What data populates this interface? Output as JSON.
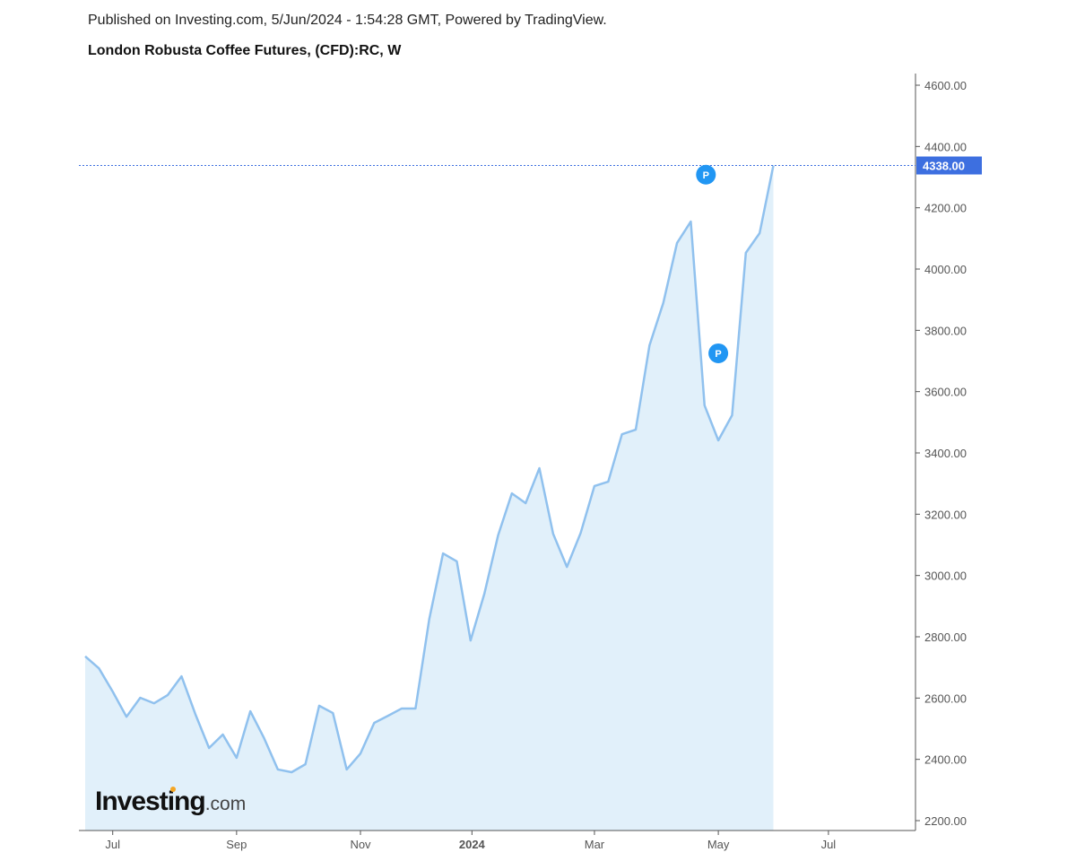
{
  "header": {
    "published": "Published on Investing.com, 5/Jun/2024 - 1:54:28 GMT, Powered by TradingView.",
    "title": "London Robusta Coffee Futures, (CFD):RC, W"
  },
  "logo": {
    "main": "Investing",
    "suffix": ".com"
  },
  "colors": {
    "line": "#90c1ee",
    "fill": "#e1f0fa",
    "price_label": "#3d6fe0",
    "marker": "#2196f3"
  },
  "chart_data": {
    "type": "area",
    "title": "London Robusta Coffee Futures, (CFD):RC, W",
    "xlabel": "",
    "ylabel": "",
    "ylim": [
      2200,
      4600
    ],
    "grid": false,
    "y_ticks": [
      "2200.00",
      "2400.00",
      "2600.00",
      "2800.00",
      "3000.00",
      "3200.00",
      "3400.00",
      "3600.00",
      "3800.00",
      "4000.00",
      "4200.00",
      "4400.00",
      "4600.00"
    ],
    "x_ticks": [
      {
        "label": "Jul",
        "week": 2,
        "bold": false
      },
      {
        "label": "Sep",
        "week": 11,
        "bold": false
      },
      {
        "label": "Nov",
        "week": 20,
        "bold": false
      },
      {
        "label": "2024",
        "week": 28.1,
        "bold": true
      },
      {
        "label": "Mar",
        "week": 37,
        "bold": false
      },
      {
        "label": "May",
        "week": 46,
        "bold": false
      },
      {
        "label": "Jul",
        "week": 54,
        "bold": false
      }
    ],
    "x_range_weeks": [
      -0.5,
      60.8
    ],
    "values": [
      2736,
      2697,
      2621,
      2539,
      2601,
      2583,
      2610,
      2671,
      2548,
      2437,
      2481,
      2405,
      2557,
      2469,
      2367,
      2358,
      2384,
      2575,
      2551,
      2367,
      2419,
      2519,
      2542,
      2566,
      2566,
      2858,
      3072,
      3046,
      2788,
      2940,
      3131,
      3268,
      3236,
      3350,
      3136,
      3028,
      3139,
      3292,
      3306,
      3461,
      3476,
      3751,
      3889,
      4085,
      4155,
      3555,
      3441,
      3523,
      4053,
      4117,
      4338
    ],
    "last_price": {
      "value": 4338,
      "label": "4338.00"
    },
    "markers": [
      {
        "label": "P",
        "week": 45.1,
        "value": 4308
      },
      {
        "label": "P",
        "week": 46,
        "value": 3725
      }
    ]
  }
}
